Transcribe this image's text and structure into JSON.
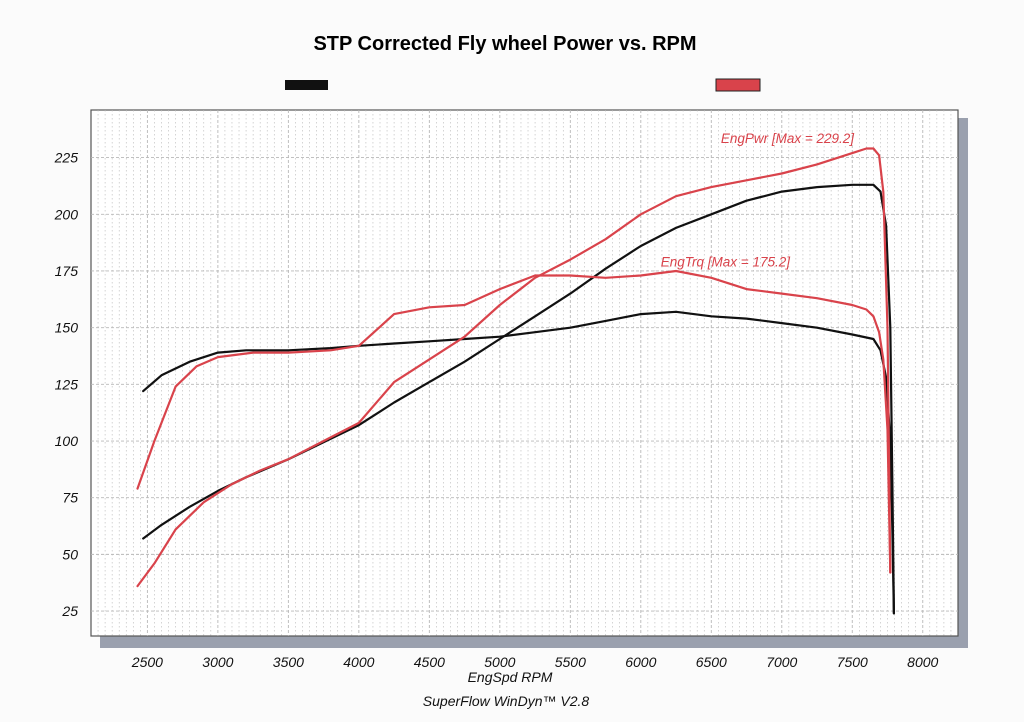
{
  "chart_data": {
    "type": "line",
    "title": "STP Corrected Fly wheel Power vs. RPM",
    "xlabel": "EngSpd  RPM",
    "footer": "SuperFlow WinDyn™ V2.8",
    "xlim": [
      2100,
      8250
    ],
    "ylim": [
      14,
      246
    ],
    "x_ticks": [
      2500,
      3000,
      3500,
      4000,
      4500,
      5000,
      5500,
      6000,
      6500,
      7000,
      7500,
      8000
    ],
    "y_ticks": [
      25,
      50,
      75,
      100,
      125,
      150,
      175,
      200,
      225
    ],
    "x_tick_labels": [
      "2500",
      "3000",
      "3500",
      "4000",
      "4500",
      "5000",
      "5500",
      "6000",
      "6500",
      "7000",
      "7500",
      "8000"
    ],
    "y_tick_labels": [
      "25",
      "50",
      "75",
      "100",
      "125",
      "150",
      "175",
      "200",
      "225"
    ],
    "grid": true,
    "legend_placement": "top",
    "colors": {
      "black_run": "#111111",
      "red_run": "#d9434b",
      "grid": "#b8b8b8",
      "frame": "#555555",
      "shadow": "#9aa0ae"
    },
    "annotations": [
      {
        "text": "EngPwr [Max = 229.2]",
        "x": 7040,
        "y": 231.5,
        "color": "#d9434b"
      },
      {
        "text": "EngTrq [Max = 175.2]",
        "x": 6600,
        "y": 177,
        "color": "#d9434b"
      }
    ],
    "series": [
      {
        "color": "#111111",
        "quantity": "power",
        "x": [
          2470,
          2600,
          2800,
          3000,
          3200,
          3500,
          3800,
          4000,
          4250,
          4500,
          4750,
          5000,
          5250,
          5500,
          5750,
          6000,
          6250,
          6500,
          6750,
          7000,
          7250,
          7500,
          7650,
          7700,
          7740,
          7770,
          7785,
          7795
        ],
        "y": [
          57,
          63,
          71,
          78,
          84,
          92,
          101,
          107,
          117,
          126,
          135,
          145,
          155,
          165,
          176,
          186,
          194,
          200,
          206,
          210,
          212,
          213,
          213,
          210,
          195,
          150,
          80,
          24
        ]
      },
      {
        "color": "#111111",
        "quantity": "torque",
        "x": [
          2470,
          2600,
          2800,
          3000,
          3200,
          3500,
          3800,
          4000,
          4250,
          4500,
          4750,
          5000,
          5250,
          5500,
          5750,
          6000,
          6250,
          6500,
          6750,
          7000,
          7250,
          7500,
          7650,
          7700,
          7740,
          7770,
          7785,
          7795
        ],
        "y": [
          122,
          129,
          135,
          139,
          140,
          140,
          141,
          142,
          143,
          144,
          145,
          146,
          148,
          150,
          153,
          156,
          157,
          155,
          154,
          152,
          150,
          147,
          145,
          140,
          128,
          100,
          60,
          24
        ]
      },
      {
        "color": "#d9434b",
        "quantity": "power",
        "x": [
          2430,
          2550,
          2700,
          2900,
          3100,
          3300,
          3500,
          3750,
          4000,
          4250,
          4500,
          4750,
          5000,
          5250,
          5500,
          5750,
          6000,
          6250,
          6500,
          6750,
          7000,
          7250,
          7500,
          7600,
          7650,
          7690,
          7720,
          7750,
          7770
        ],
        "y": [
          36,
          46,
          61,
          73,
          81,
          87,
          92,
          100,
          108,
          126,
          136,
          146,
          160,
          172,
          180,
          189,
          200,
          208,
          212,
          215,
          218,
          222,
          227,
          229,
          229,
          226,
          210,
          150,
          42
        ]
      },
      {
        "color": "#d9434b",
        "quantity": "torque",
        "x": [
          2430,
          2550,
          2700,
          2850,
          3000,
          3250,
          3500,
          3800,
          4000,
          4250,
          4500,
          4750,
          5000,
          5250,
          5500,
          5750,
          6000,
          6250,
          6500,
          6750,
          7000,
          7250,
          7500,
          7600,
          7650,
          7690,
          7720,
          7750,
          7770
        ],
        "y": [
          79,
          100,
          124,
          133,
          137,
          139,
          139,
          140,
          142,
          156,
          159,
          160,
          167,
          173,
          173,
          172,
          173,
          175,
          172,
          167,
          165,
          163,
          160,
          158,
          155,
          148,
          136,
          105,
          42
        ]
      }
    ]
  }
}
